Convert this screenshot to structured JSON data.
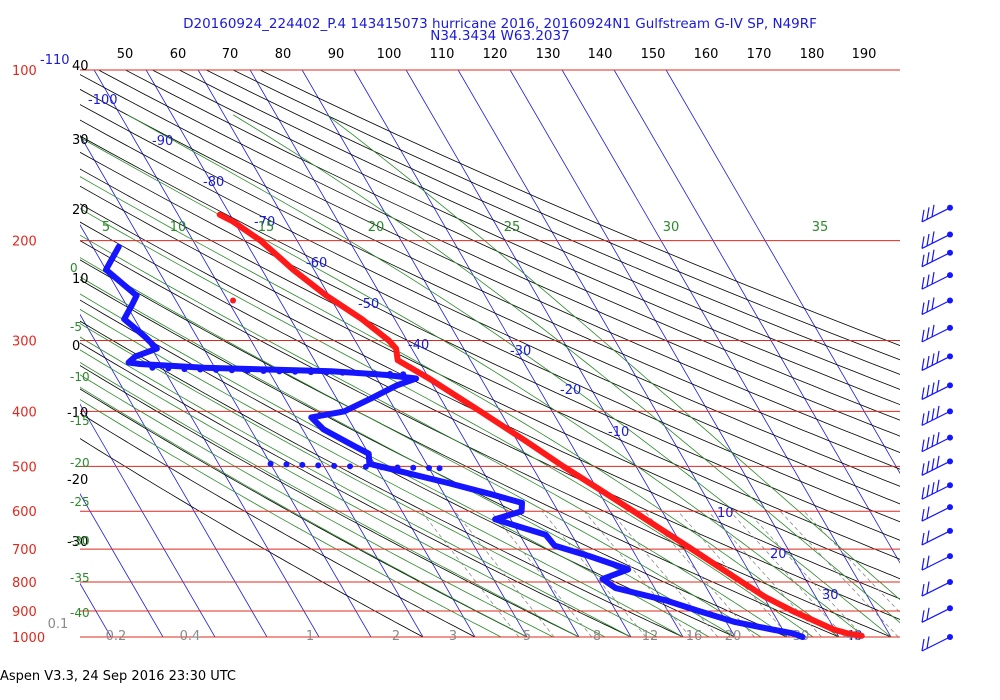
{
  "header": {
    "line1": "D20160924_224402_P.4 143415073 hurricane 2016, 20160924N1 Gulfstream G-IV SP, N49RF",
    "line2": "N34.3434 W63.2037"
  },
  "footer": "Aspen V3.3, 24 Sep 2016  23:30 UTC",
  "colors": {
    "pressure_lines": "#e0281e",
    "isotherms": "#1a1adc",
    "dry_adiabats": "#000000",
    "moist_adiabats": "#2a8a2a",
    "mixing_ratio": "#8a8a8a",
    "temperature_trace": "#ff1a1a",
    "dewpoint_trace": "#1515ff",
    "wind_barbs": "#1515ff"
  },
  "chart_data": {
    "type": "skew-t log-p",
    "pressure_levels": [
      100,
      200,
      300,
      400,
      500,
      600,
      700,
      800,
      900,
      1000
    ],
    "pressure_labels": [
      "100",
      "200",
      "300",
      "400",
      "500",
      "600",
      "700",
      "800",
      "900",
      "1000"
    ],
    "temperature_labels": [
      "-110",
      "-100",
      "-90",
      "-80",
      "-70",
      "-60",
      "-50",
      "-40",
      "-30",
      "-20",
      "-10",
      "10",
      "20",
      "30",
      "40"
    ],
    "theta_top_labels": [
      "50",
      "60",
      "70",
      "80",
      "90",
      "100",
      "110",
      "120",
      "130",
      "140",
      "150",
      "160",
      "170",
      "180",
      "190"
    ],
    "theta_left_labels": [
      "40",
      "30",
      "20",
      "10",
      "0",
      "-10",
      "-20",
      "-30"
    ],
    "theta_e_labels": [
      "5",
      "10",
      "15",
      "20",
      "25",
      "30",
      "35"
    ],
    "moist_left_labels": [
      "0",
      "-5",
      "-10",
      "-15",
      "-20",
      "-25",
      "-30",
      "-35",
      "-40"
    ],
    "mixing_ratio_labels": [
      "0.1",
      "0.2",
      "0.4",
      "1",
      "2",
      "3",
      "5",
      "8",
      "12",
      "16",
      "20",
      "30",
      "40"
    ],
    "series": [
      {
        "name": "Temperature",
        "points": [
          [
            180,
            -52.0
          ],
          [
            185,
            -50.2
          ],
          [
            200,
            -47.0
          ],
          [
            225,
            -44.0
          ],
          [
            250,
            -40.5
          ],
          [
            275,
            -36.3
          ],
          [
            300,
            -33.5
          ],
          [
            310,
            -33.0
          ],
          [
            325,
            -34.0
          ],
          [
            350,
            -30.0
          ],
          [
            400,
            -23.8
          ],
          [
            450,
            -18.5
          ],
          [
            500,
            -14.0
          ],
          [
            550,
            -9.5
          ],
          [
            600,
            -5.5
          ],
          [
            650,
            -1.9
          ],
          [
            700,
            1.5
          ],
          [
            750,
            4.6
          ],
          [
            800,
            7.5
          ],
          [
            850,
            10.3
          ],
          [
            900,
            14.0
          ],
          [
            950,
            18.2
          ],
          [
            970,
            19.8
          ],
          [
            985,
            22.0
          ],
          [
            995,
            24.5
          ]
        ]
      },
      {
        "name": "Dewpoint",
        "points": [
          [
            205,
            -75.0
          ],
          [
            225,
            -80.0
          ],
          [
            250,
            -77.0
          ],
          [
            260,
            -79.0
          ],
          [
            275,
            -82.0
          ],
          [
            295,
            -80.0
          ],
          [
            310,
            -79.0
          ],
          [
            320,
            -84.0
          ],
          [
            328,
            -86.0
          ],
          [
            330,
            -84.0
          ],
          [
            335,
            -72.0
          ],
          [
            340,
            -48.0
          ],
          [
            345,
            -38.0
          ],
          [
            350,
            -32.5
          ],
          [
            360,
            -37.0
          ],
          [
            380,
            -43.5
          ],
          [
            400,
            -50.0
          ],
          [
            410,
            -57.0
          ],
          [
            430,
            -56.0
          ],
          [
            460,
            -52.0
          ],
          [
            475,
            -50.0
          ],
          [
            495,
            -51.0
          ],
          [
            510,
            -46.0
          ],
          [
            535,
            -38.0
          ],
          [
            560,
            -31.0
          ],
          [
            580,
            -26.0
          ],
          [
            600,
            -27.0
          ],
          [
            620,
            -33.0
          ],
          [
            660,
            -25.0
          ],
          [
            690,
            -24.5
          ],
          [
            720,
            -19.0
          ],
          [
            760,
            -13.0
          ],
          [
            790,
            -19.0
          ],
          [
            820,
            -17.5
          ],
          [
            860,
            -9.5
          ],
          [
            900,
            -4.0
          ],
          [
            940,
            1.5
          ],
          [
            970,
            8.0
          ],
          [
            985,
            11.5
          ],
          [
            1000,
            13.0
          ]
        ]
      }
    ],
    "dots": [
      {
        "name": "isolated-temperature-point",
        "points": [
          [
            255,
            -59.0
          ]
        ]
      },
      {
        "name": "dewpoint-dotted-segment-upper",
        "points": [
          [
            335,
            -82
          ],
          [
            336,
            -79
          ],
          [
            337,
            -76
          ],
          [
            337.5,
            -73
          ],
          [
            338,
            -70
          ],
          [
            338.5,
            -67
          ],
          [
            339,
            -64
          ],
          [
            339.5,
            -61
          ],
          [
            340,
            -58
          ],
          [
            340.5,
            -55
          ],
          [
            341,
            -52
          ],
          [
            341.5,
            -49
          ],
          [
            342,
            -46
          ],
          [
            342.5,
            -43
          ],
          [
            343,
            -40
          ],
          [
            343.5,
            -37
          ],
          [
            344,
            -34.5
          ]
        ]
      },
      {
        "name": "dewpoint-dotted-segment-lower",
        "points": [
          [
            495,
            -70
          ],
          [
            496,
            -67
          ],
          [
            497,
            -64
          ],
          [
            498,
            -61
          ],
          [
            499,
            -58
          ],
          [
            500,
            -55
          ],
          [
            501,
            -52
          ],
          [
            502,
            -49
          ],
          [
            502.5,
            -46
          ],
          [
            503,
            -43
          ],
          [
            503.5,
            -40
          ],
          [
            504,
            -38
          ]
        ]
      }
    ],
    "wind_barbs_levels": [
      175,
      195,
      210,
      230,
      255,
      285,
      320,
      360,
      400,
      445,
      490,
      540,
      590,
      650,
      720,
      800,
      890,
      1000
    ]
  }
}
